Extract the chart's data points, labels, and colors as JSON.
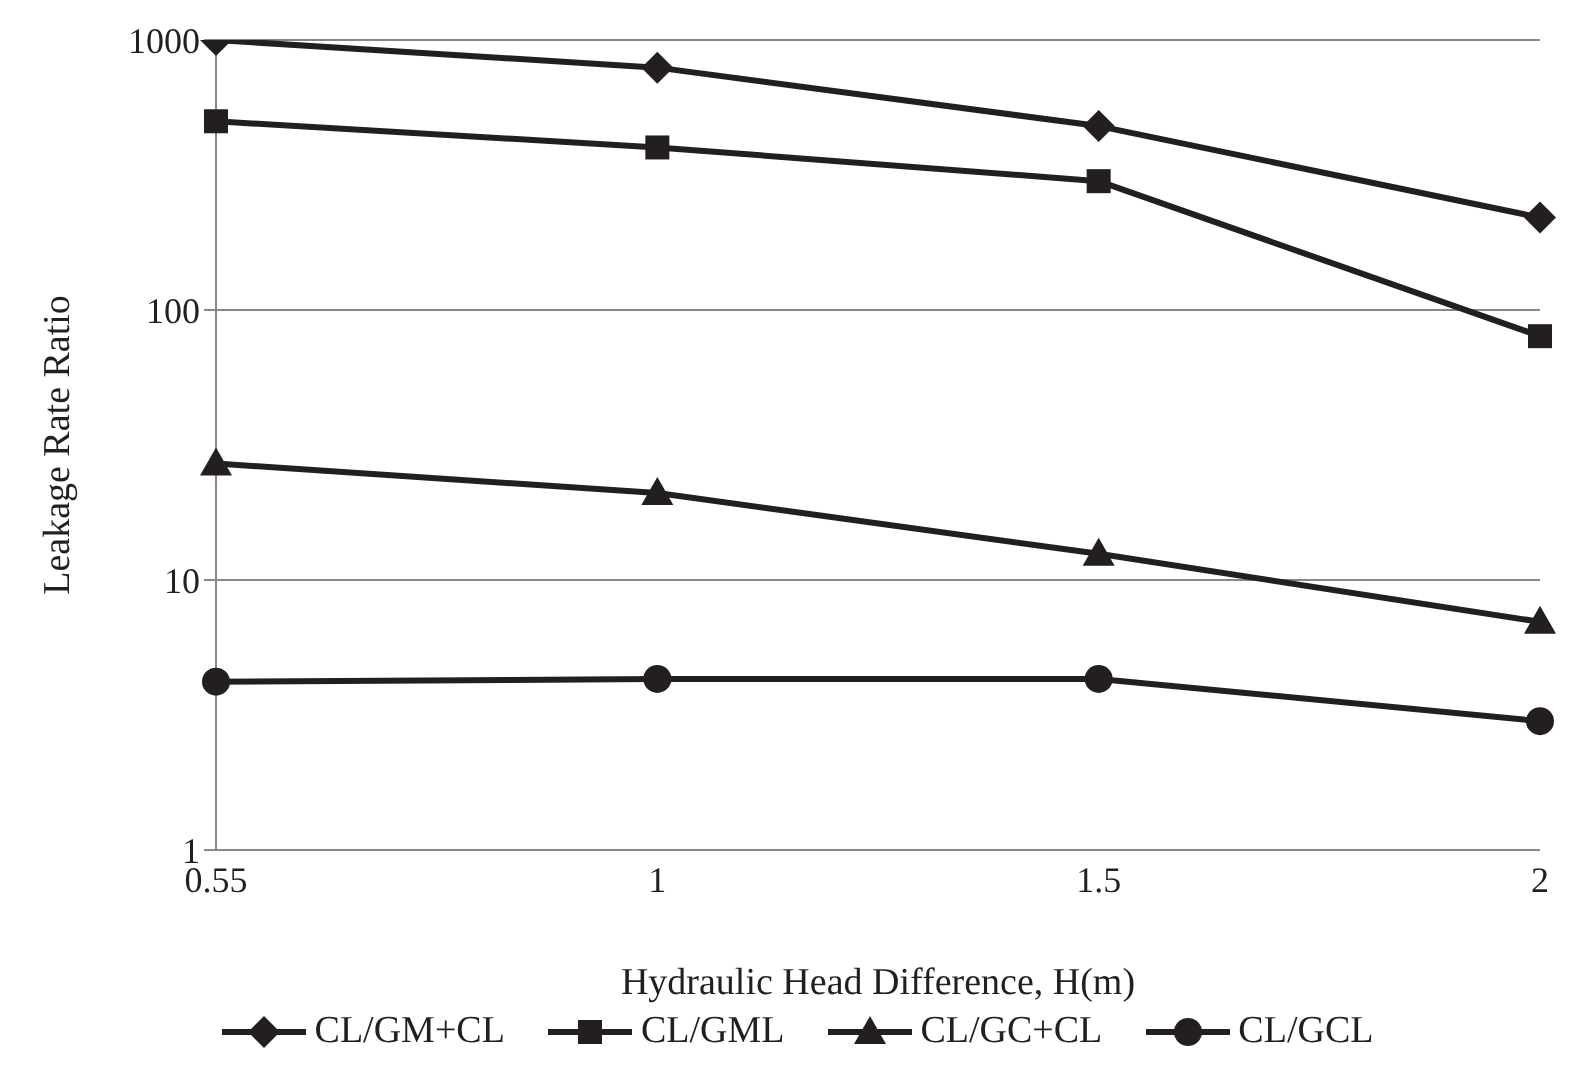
{
  "chart_data": {
    "type": "line",
    "xlabel": "Hydraulic Head Difference, H(m)",
    "ylabel": "Leakage Rate Ratio",
    "categories": [
      "0.55",
      "1",
      "1.5",
      "2"
    ],
    "series": [
      {
        "name": "CL/GM+CL",
        "color": "#231f20",
        "marker": "diamond",
        "values": [
          1000,
          790,
          480,
          220
        ]
      },
      {
        "name": "CL/GML",
        "color": "#231f20",
        "marker": "square",
        "values": [
          500,
          400,
          300,
          80
        ]
      },
      {
        "name": "CL/GC+CL",
        "color": "#231f20",
        "marker": "triangle",
        "values": [
          27,
          21,
          12.5,
          7
        ]
      },
      {
        "name": "CL/GCL",
        "color": "#231f20",
        "marker": "circle",
        "values": [
          4.2,
          4.3,
          4.3,
          3
        ]
      }
    ],
    "log": "y",
    "ylim": [
      1,
      1000
    ],
    "yticks": [
      1,
      10,
      100,
      1000
    ],
    "grid": "y",
    "legend": "bottom",
    "line_style": "solid"
  }
}
